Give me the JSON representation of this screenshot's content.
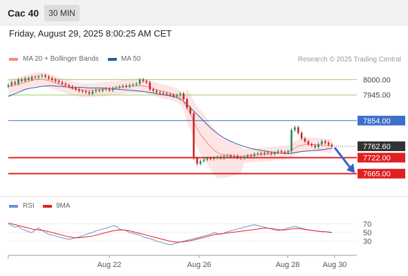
{
  "header": {
    "symbol": "Cac 40",
    "timeframe": "30 MIN"
  },
  "timestamp": "Friday, August 29, 2025 8:00:25 AM CET",
  "legend": {
    "bb": {
      "label": "MA 20 + Bollinger Bands",
      "color": "#f28b82"
    },
    "ma50": {
      "label": "MA 50",
      "color": "#2c5aa0"
    },
    "credit": "Research © 2025 Trading Central"
  },
  "levels": [
    {
      "label": "8000.00",
      "value": 8000,
      "kind": "target",
      "color": "#9ccc65"
    },
    {
      "label": "7945.00",
      "value": 7945,
      "kind": "target",
      "color": "#9ccc65"
    },
    {
      "label": "7854.00",
      "value": 7854,
      "kind": "pivot",
      "color": "#3d6fc9"
    },
    {
      "label": "7762.60",
      "value": 7762.6,
      "kind": "last",
      "color": "#333333"
    },
    {
      "label": "7722.00",
      "value": 7722,
      "kind": "support",
      "color": "#e02020"
    },
    {
      "label": "7665.00",
      "value": 7665,
      "kind": "support",
      "color": "#e02020"
    }
  ],
  "rsi_legend": {
    "rsi": {
      "label": "RSI",
      "color": "#6a8fd8"
    },
    "ma9": {
      "label": "9MA",
      "color": "#e02020"
    }
  },
  "rsi_ticks": [
    "70",
    "50",
    "30"
  ],
  "x_labels": [
    "Aug 22",
    "Aug 26",
    "Aug 28",
    "Aug 30"
  ],
  "chart_data": {
    "type": "candlestick",
    "ylim": [
      7620,
      8050
    ],
    "price_close": [
      7980,
      7990,
      7985,
      8000,
      7995,
      8005,
      8000,
      8010,
      8008,
      8012,
      8015,
      8010,
      8005,
      8000,
      7995,
      7990,
      7985,
      7980,
      7975,
      7970,
      7965,
      7960,
      7958,
      7955,
      7950,
      7958,
      7962,
      7960,
      7965,
      7968,
      7962,
      7970,
      7972,
      7975,
      7978,
      7975,
      7980,
      7982,
      7985,
      8000,
      7995,
      7990,
      7965,
      7960,
      7955,
      7952,
      7950,
      7948,
      7945,
      7940,
      7945,
      7950,
      7930,
      7900,
      7880,
      7720,
      7700,
      7710,
      7715,
      7720,
      7718,
      7722,
      7725,
      7720,
      7728,
      7730,
      7725,
      7728,
      7722,
      7720,
      7725,
      7730,
      7728,
      7735,
      7738,
      7735,
      7740,
      7738,
      7735,
      7740,
      7745,
      7742,
      7740,
      7745,
      7820,
      7830,
      7810,
      7790,
      7780,
      7770,
      7765,
      7760,
      7770,
      7780,
      7775,
      7768,
      7762.6
    ],
    "ma20": [
      7975,
      7978,
      7980,
      7983,
      7986,
      7990,
      7994,
      7997,
      8000,
      8002,
      8001,
      7999,
      7996,
      7992,
      7988,
      7984,
      7980,
      7976,
      7972,
      7968,
      7966,
      7964,
      7962,
      7961,
      7962,
      7963,
      7964,
      7965,
      7966,
      7967,
      7968,
      7969,
      7970,
      7972,
      7974,
      7975,
      7976,
      7977,
      7978,
      7978,
      7977,
      7975,
      7972,
      7968,
      7964,
      7960,
      7958,
      7955,
      7952,
      7948,
      7945,
      7935,
      7920,
      7900,
      7880,
      7850,
      7825,
      7805,
      7790,
      7775,
      7762,
      7750,
      7740,
      7735,
      7732,
      7730,
      7729,
      7728,
      7727,
      7727,
      7728,
      7729,
      7730,
      7731,
      7732,
      7733,
      7734,
      7735,
      7736,
      7737,
      7738,
      7739,
      7740,
      7742,
      7748,
      7756,
      7762,
      7766,
      7768,
      7769,
      7769,
      7768,
      7767,
      7766,
      7765,
      7764,
      7763
    ],
    "ma50": [
      7940,
      7945,
      7950,
      7955,
      7960,
      7965,
      7968,
      7970,
      7972,
      7974,
      7976,
      7977,
      7978,
      7978,
      7977,
      7976,
      7975,
      7974,
      7973,
      7972,
      7972,
      7972,
      7972,
      7971,
      7970,
      7970,
      7970,
      7970,
      7970,
      7969,
      7968,
      7967,
      7966,
      7965,
      7964,
      7963,
      7962,
      7961,
      7960,
      7959,
      7958,
      7956,
      7954,
      7952,
      7950,
      7948,
      7946,
      7944,
      7942,
      7940,
      7936,
      7930,
      7922,
      7912,
      7900,
      7888,
      7876,
      7864,
      7852,
      7840,
      7828,
      7818,
      7808,
      7800,
      7792,
      7786,
      7780,
      7775,
      7770,
      7766,
      7762,
      7758,
      7755,
      7752,
      7750,
      7748,
      7746,
      7744,
      7742,
      7740,
      7739,
      7738,
      7737,
      7736,
      7738,
      7740,
      7742,
      7744,
      7745,
      7746,
      7747,
      7748,
      7749,
      7750,
      7752,
      7754,
      7756
    ],
    "rsi": [
      70,
      66,
      62,
      64,
      58,
      55,
      52,
      50,
      56,
      60,
      55,
      50,
      46,
      44,
      42,
      40,
      38,
      36,
      34,
      36,
      38,
      40,
      42,
      46,
      48,
      50,
      54,
      56,
      58,
      60,
      62,
      66,
      64,
      58,
      56,
      54,
      50,
      48,
      46,
      44,
      40,
      38,
      36,
      34,
      30,
      28,
      26,
      24,
      22,
      24,
      26,
      28,
      30,
      32,
      34,
      36,
      38,
      40,
      42,
      44,
      46,
      50,
      48,
      46,
      48,
      52,
      54,
      56,
      58,
      60,
      62,
      64,
      66,
      68,
      66,
      64,
      62,
      60,
      58,
      56,
      54,
      56,
      58,
      60,
      62,
      64,
      62,
      60,
      58,
      56,
      55,
      54,
      53,
      52,
      52,
      51,
      50
    ],
    "rsi_ma9": [
      72,
      70,
      68,
      66,
      64,
      62,
      60,
      58,
      57,
      56,
      55,
      54,
      52,
      50,
      48,
      46,
      44,
      42,
      40,
      39,
      38,
      38,
      39,
      40,
      41,
      42,
      44,
      46,
      48,
      50,
      52,
      54,
      55,
      56,
      56,
      55,
      54,
      52,
      50,
      48,
      46,
      44,
      42,
      40,
      38,
      36,
      34,
      32,
      30,
      29,
      28,
      28,
      29,
      30,
      31,
      33,
      35,
      37,
      39,
      41,
      43,
      45,
      46,
      47,
      48,
      49,
      50,
      51,
      52,
      53,
      54,
      55,
      56,
      57,
      58,
      59,
      60,
      60,
      59,
      58,
      57,
      56,
      56,
      57,
      58,
      59,
      59,
      58,
      57,
      56,
      55,
      54,
      53,
      52,
      52,
      51,
      50
    ]
  }
}
